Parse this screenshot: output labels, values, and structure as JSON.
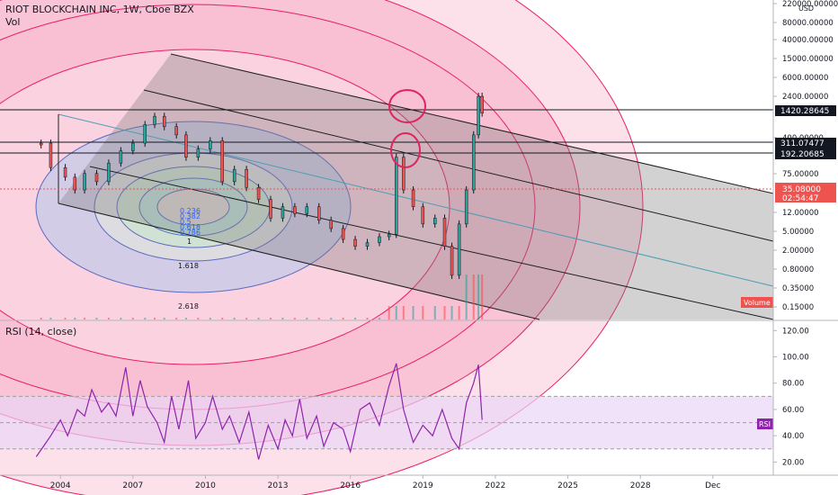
{
  "header": {
    "title": "RIOT BLOCKCHAIN INC, 1W, Cboe BZX",
    "vol_label": "Vol",
    "rsi_label": "RSI (14, close)"
  },
  "price_axis": {
    "ticks": [
      "220000.00000",
      "80000.00000",
      "40000.00000",
      "15000.00000",
      "6000.00000",
      "2400.00000",
      "400.00000",
      "75.00000",
      "12.00000",
      "5.00000",
      "2.00000",
      "0.80000",
      "0.35000",
      "0.15000"
    ],
    "currency": "USD"
  },
  "price_labels": {
    "level1": "1420.28645",
    "level2": "311.07477",
    "level3": "192.20685",
    "last_price": "35.08000",
    "countdown": "02:54:47",
    "volume_badge": "Volume"
  },
  "rsi_axis": {
    "ticks": [
      "120.00",
      "100.00",
      "80.00",
      "60.00",
      "40.00",
      "20.00"
    ],
    "badge": "RSI"
  },
  "time_axis": {
    "labels": [
      "2004",
      "2007",
      "2010",
      "2013",
      "2016",
      "2019",
      "2022",
      "2025",
      "2028",
      "Dec"
    ]
  },
  "fib_labels": [
    "0.236",
    "0.382",
    "0.5",
    "0.618",
    "0.786",
    "1",
    "1.618",
    "2.618"
  ],
  "colors": {
    "fib_outer": "#e91e63",
    "fib_blue": "#5c6bc0",
    "channel_fill": "#7f7f7f",
    "trendline": "#4a9eb5",
    "candle_up": "#26a69a",
    "candle_down": "#ef5350",
    "rsi_line": "#8e24aa",
    "rsi_band": "#e9d5f7",
    "last_price_bg": "#ef5350",
    "circle_marker": "#e0245e"
  },
  "chart_data": {
    "type": "line",
    "title": "RIOT BLOCKCHAIN INC, 1W, Cboe BZX",
    "price_scale": "log",
    "rsi_series_name": "RSI (14, close)",
    "horizontal_levels": [
      1420.28645,
      311.07477,
      192.20685
    ],
    "last_price": 35.08,
    "price_series": [
      [
        2003.2,
        8
      ],
      [
        2003.6,
        2.4
      ],
      [
        2004.2,
        1.5
      ],
      [
        2004.6,
        0.8
      ],
      [
        2005.0,
        1.8
      ],
      [
        2005.5,
        1.2
      ],
      [
        2006.0,
        3.0
      ],
      [
        2006.5,
        5.5
      ],
      [
        2007.0,
        8.0
      ],
      [
        2007.5,
        20.0
      ],
      [
        2007.9,
        30.0
      ],
      [
        2008.3,
        18.0
      ],
      [
        2008.8,
        12.0
      ],
      [
        2009.2,
        4.0
      ],
      [
        2009.7,
        6.0
      ],
      [
        2010.2,
        9.0
      ],
      [
        2010.7,
        1.2
      ],
      [
        2011.2,
        2.2
      ],
      [
        2011.7,
        0.9
      ],
      [
        2012.2,
        0.5
      ],
      [
        2012.7,
        0.2
      ],
      [
        2013.2,
        0.35
      ],
      [
        2013.7,
        0.25
      ],
      [
        2014.2,
        0.35
      ],
      [
        2014.7,
        0.18
      ],
      [
        2015.2,
        0.12
      ],
      [
        2015.7,
        0.07
      ],
      [
        2016.2,
        0.05
      ],
      [
        2016.7,
        0.06
      ],
      [
        2017.2,
        0.08
      ],
      [
        2017.6,
        0.09
      ],
      [
        2017.9,
        4.0
      ],
      [
        2018.2,
        0.8
      ],
      [
        2018.6,
        0.35
      ],
      [
        2019.0,
        0.15
      ],
      [
        2019.5,
        0.2
      ],
      [
        2019.9,
        0.05
      ],
      [
        2020.2,
        0.012
      ],
      [
        2020.5,
        0.15
      ],
      [
        2020.8,
        0.8
      ],
      [
        2021.1,
        12.0
      ],
      [
        2021.3,
        80.0
      ],
      [
        2021.45,
        35.08
      ]
    ],
    "rsi_series": [
      [
        2003.0,
        24
      ],
      [
        2003.3,
        32
      ],
      [
        2003.6,
        40
      ],
      [
        2004.0,
        52
      ],
      [
        2004.3,
        40
      ],
      [
        2004.7,
        60
      ],
      [
        2005.0,
        55
      ],
      [
        2005.3,
        75
      ],
      [
        2005.7,
        58
      ],
      [
        2006.0,
        65
      ],
      [
        2006.3,
        55
      ],
      [
        2006.7,
        92
      ],
      [
        2007.0,
        55
      ],
      [
        2007.3,
        82
      ],
      [
        2007.6,
        62
      ],
      [
        2008.0,
        50
      ],
      [
        2008.3,
        35
      ],
      [
        2008.6,
        70
      ],
      [
        2008.9,
        45
      ],
      [
        2009.3,
        82
      ],
      [
        2009.6,
        38
      ],
      [
        2010.0,
        50
      ],
      [
        2010.3,
        70
      ],
      [
        2010.7,
        45
      ],
      [
        2011.0,
        55
      ],
      [
        2011.4,
        35
      ],
      [
        2011.8,
        58
      ],
      [
        2012.2,
        22
      ],
      [
        2012.6,
        48
      ],
      [
        2013.0,
        30
      ],
      [
        2013.3,
        52
      ],
      [
        2013.6,
        40
      ],
      [
        2013.9,
        68
      ],
      [
        2014.2,
        38
      ],
      [
        2014.6,
        55
      ],
      [
        2014.9,
        32
      ],
      [
        2015.3,
        50
      ],
      [
        2015.7,
        45
      ],
      [
        2016.0,
        28
      ],
      [
        2016.4,
        60
      ],
      [
        2016.8,
        65
      ],
      [
        2017.2,
        48
      ],
      [
        2017.6,
        78
      ],
      [
        2017.9,
        95
      ],
      [
        2018.2,
        60
      ],
      [
        2018.6,
        35
      ],
      [
        2019.0,
        48
      ],
      [
        2019.4,
        40
      ],
      [
        2019.8,
        60
      ],
      [
        2020.2,
        38
      ],
      [
        2020.5,
        30
      ],
      [
        2020.8,
        65
      ],
      [
        2021.1,
        80
      ],
      [
        2021.3,
        94
      ],
      [
        2021.45,
        52
      ]
    ],
    "rsi_bands": [
      30,
      70
    ],
    "rsi_mid": 50,
    "rsi_ylim": [
      10,
      125
    ],
    "price_ylim": [
      0.15,
      220000
    ],
    "x_range": [
      2001.5,
      2033.5
    ],
    "fib_levels": [
      0.236,
      0.382,
      0.5,
      0.618,
      0.786,
      1,
      1.618,
      2.618
    ]
  }
}
